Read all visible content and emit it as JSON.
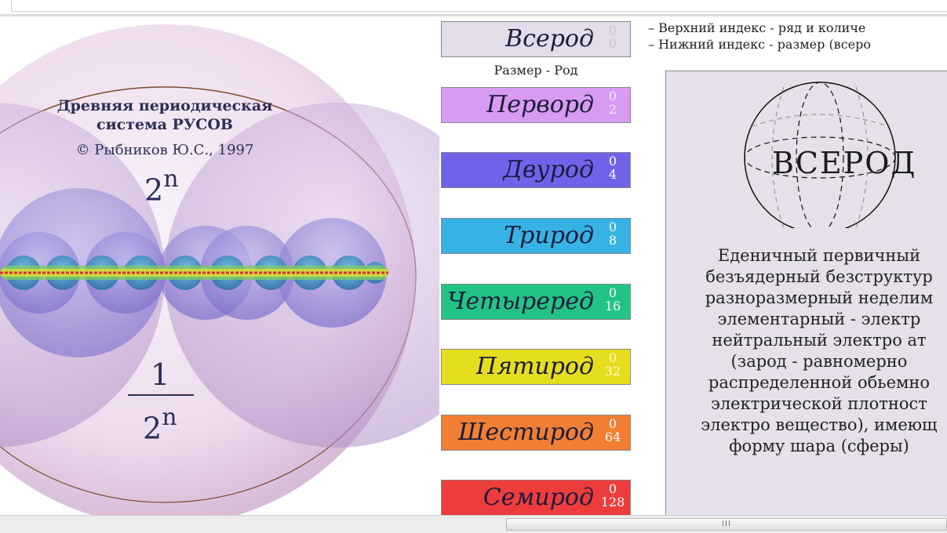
{
  "diagram": {
    "title": "Древняя периодическая система РУСОВ",
    "copyright": "© Рыбников Ю.С., 1997",
    "formula_base": "2",
    "formula_exp": "n",
    "fraction_numerator": "1",
    "size_caption": "Размер - Род",
    "legend": [
      "– Верхний индекс - ряд и количе",
      "– Нижний индекс - размер (всеро"
    ],
    "rods": [
      {
        "name": "Всерод",
        "upper": "0",
        "lower": "0",
        "color": "#e3dde9",
        "idx_color": "#c9c3cf"
      },
      {
        "name": "Перворд",
        "upper": "0",
        "lower": "2",
        "color": "#d79bf2",
        "idx_color": "#f7eefd"
      },
      {
        "name": "Двурод",
        "upper": "0",
        "lower": "4",
        "color": "#7063ea",
        "idx_color": "#ffffff"
      },
      {
        "name": "Трирод",
        "upper": "0",
        "lower": "8",
        "color": "#36b3e4",
        "idx_color": "#ffffff"
      },
      {
        "name": "Четыреред",
        "upper": "0",
        "lower": "16",
        "color": "#22c485",
        "idx_color": "#ffffff"
      },
      {
        "name": "Пятирод",
        "upper": "0",
        "lower": "32",
        "color": "#e5de1f",
        "idx_color": "#fdfbd0"
      },
      {
        "name": "Шестирод",
        "upper": "0",
        "lower": "64",
        "color": "#f07f33",
        "idx_color": "#ffffff"
      },
      {
        "name": "Семирод",
        "upper": "0",
        "lower": "128",
        "color": "#ec3c3c",
        "idx_color": "#ffffff"
      }
    ],
    "panel": {
      "sphere_label": "ВСЕРОД",
      "description": [
        "Еденичный первичный",
        "безъядерный безструктур",
        "разноразмерный неделим",
        "элементарный - электр",
        "нейтральный электро ат",
        "(зарод - равномерно",
        "распределенной обьемно",
        "электрической плотност",
        "электро вещество), имеющ",
        "форму шара (сферы)"
      ]
    }
  },
  "scrollbar": {
    "grip": "III"
  }
}
